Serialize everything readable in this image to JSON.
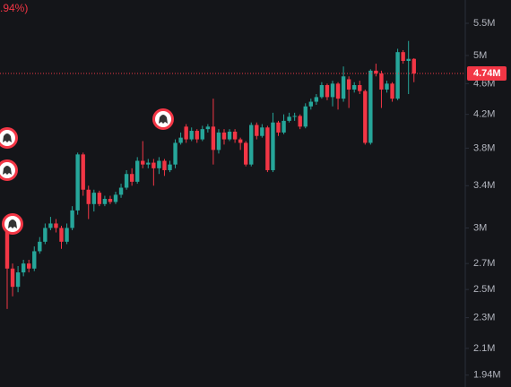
{
  "chart_data": {
    "type": "candlestick",
    "title": ".94%)",
    "log_scale": true,
    "grid": false,
    "up_color": "#26a69a",
    "down_color": "#f23645",
    "ylim": [
      1873000,
      5893000
    ],
    "yticks": [
      {
        "value": 5500000,
        "label": "5.5M"
      },
      {
        "value": 5000000,
        "label": "5M"
      },
      {
        "value": 4600000,
        "label": "4.6M"
      },
      {
        "value": 4200000,
        "label": "4.2M"
      },
      {
        "value": 3800000,
        "label": "3.8M"
      },
      {
        "value": 3400000,
        "label": "3.4M"
      },
      {
        "value": 3000000,
        "label": "3M"
      },
      {
        "value": 2700000,
        "label": "2.7M"
      },
      {
        "value": 2500000,
        "label": "2.5M"
      },
      {
        "value": 2300000,
        "label": "2.3M"
      },
      {
        "value": 2100000,
        "label": "2.1M"
      },
      {
        "value": 1940000,
        "label": "1.94M"
      }
    ],
    "last_price": {
      "value": 4740000,
      "label": "4.74M"
    },
    "open": [
      2980000,
      2660000,
      2520000,
      2630000,
      2700000,
      2660000,
      2800000,
      2880000,
      3000000,
      3040000,
      3000000,
      2880000,
      3000000,
      3160000,
      3730000,
      3360000,
      3220000,
      3330000,
      3220000,
      3270000,
      3240000,
      3310000,
      3380000,
      3520000,
      3440000,
      3660000,
      3620000,
      3640000,
      3580000,
      3660000,
      3560000,
      3620000,
      3860000,
      4050000,
      3900000,
      4000000,
      3900000,
      4020000,
      4050000,
      3780000,
      3980000,
      3900000,
      3990000,
      3900000,
      3860000,
      3620000,
      4070000,
      3940000,
      4040000,
      3560000,
      4100000,
      3980000,
      4120000,
      4170000,
      4180000,
      4050000,
      4300000,
      4360000,
      4420000,
      4580000,
      4420000,
      4600000,
      4400000,
      4660000,
      4520000,
      4580000,
      4500000,
      3860000,
      4780000,
      4740000,
      4520000,
      4600000,
      4400000,
      5050000,
      4920000,
      4950000
    ],
    "high": [
      3040000,
      2700000,
      2680000,
      2730000,
      2730000,
      2840000,
      2920000,
      3040000,
      3100000,
      3080000,
      3020000,
      3040000,
      3200000,
      3750000,
      3750000,
      3400000,
      3360000,
      3350000,
      3300000,
      3300000,
      3340000,
      3420000,
      3560000,
      3580000,
      3700000,
      3880000,
      3680000,
      3680000,
      3700000,
      3680000,
      3660000,
      3900000,
      3980000,
      4080000,
      4040000,
      4020000,
      4060000,
      4080000,
      4400000,
      4020000,
      4020000,
      4020000,
      4020000,
      3920000,
      3880000,
      4100000,
      4100000,
      4080000,
      4060000,
      4220000,
      4120000,
      4200000,
      4220000,
      4220000,
      4200000,
      4340000,
      4400000,
      4460000,
      4620000,
      4600000,
      4640000,
      4620000,
      4840000,
      4700000,
      4620000,
      4640000,
      4520000,
      4800000,
      4880000,
      4780000,
      4640000,
      4620000,
      5100000,
      5080000,
      5220000,
      4960000
    ],
    "low": [
      2360000,
      2450000,
      2480000,
      2600000,
      2630000,
      2640000,
      2780000,
      2860000,
      2980000,
      2960000,
      2820000,
      2860000,
      2980000,
      3120000,
      3300000,
      3080000,
      3150000,
      3200000,
      3200000,
      3220000,
      3220000,
      3280000,
      3360000,
      3400000,
      3420000,
      3580000,
      3580000,
      3400000,
      3520000,
      3500000,
      3540000,
      3580000,
      3840000,
      3860000,
      3880000,
      3860000,
      3880000,
      3980000,
      3620000,
      3740000,
      3840000,
      3880000,
      3860000,
      3780000,
      3600000,
      3600000,
      3900000,
      3920000,
      3540000,
      3540000,
      3940000,
      3960000,
      4100000,
      4120000,
      4020000,
      4030000,
      4260000,
      4320000,
      4400000,
      4380000,
      4300000,
      4260000,
      4360000,
      4280000,
      4480000,
      4460000,
      3840000,
      3840000,
      4700000,
      4280000,
      4480000,
      4360000,
      4380000,
      4880000,
      4460000,
      4620000
    ],
    "close": [
      2660000,
      2520000,
      2630000,
      2700000,
      2660000,
      2800000,
      2880000,
      3000000,
      3040000,
      3000000,
      2880000,
      3000000,
      3160000,
      3730000,
      3360000,
      3220000,
      3330000,
      3220000,
      3270000,
      3240000,
      3310000,
      3380000,
      3520000,
      3440000,
      3660000,
      3620000,
      3640000,
      3580000,
      3660000,
      3560000,
      3620000,
      3860000,
      3920000,
      3900000,
      4000000,
      3900000,
      4020000,
      4050000,
      3780000,
      3980000,
      3900000,
      3990000,
      3900000,
      3860000,
      3620000,
      4070000,
      3940000,
      4040000,
      3560000,
      4100000,
      3980000,
      4120000,
      4170000,
      4180000,
      4050000,
      4300000,
      4360000,
      4420000,
      4580000,
      4420000,
      4600000,
      4400000,
      4700000,
      4520000,
      4580000,
      4500000,
      3860000,
      4780000,
      4740000,
      4520000,
      4600000,
      4400000,
      5050000,
      4920000,
      4950000,
      4740000
    ]
  }
}
